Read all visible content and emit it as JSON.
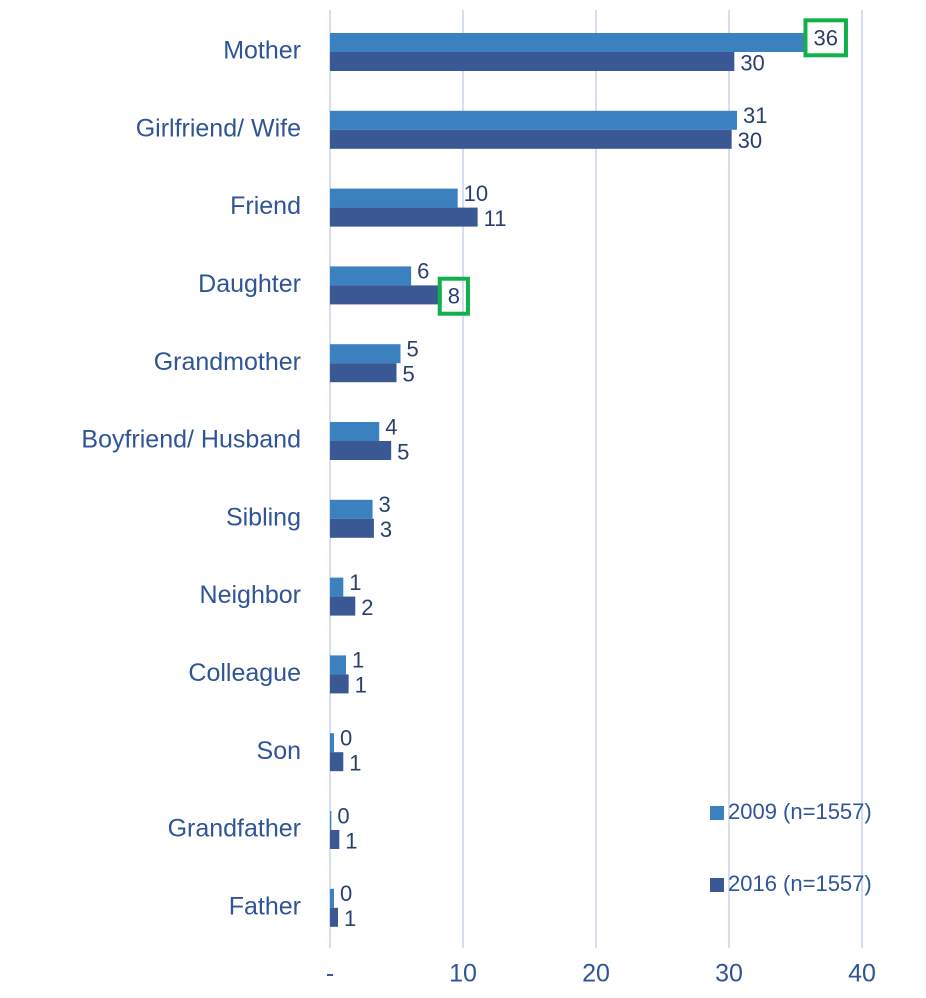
{
  "chart_data": {
    "type": "barh",
    "categories": [
      "Mother",
      "Girlfriend/ Wife",
      "Friend",
      "Daughter",
      "Grandmother",
      "Boyfriend/ Husband",
      "Sibling",
      "Neighbor",
      "Colleague",
      "Son",
      "Grandfather",
      "Father"
    ],
    "series": [
      {
        "name": "2009 (n=1557)",
        "color": "#3b80bf",
        "values": [
          35.9,
          30.6,
          9.6,
          6.1,
          5.3,
          3.7,
          3.2,
          1.0,
          1.2,
          0.3,
          0.1,
          0.3
        ],
        "value_labels": [
          "36",
          "31",
          "10",
          "6",
          "5",
          "4",
          "3",
          "1",
          "1",
          "0",
          "0",
          "0"
        ]
      },
      {
        "name": "2016 (n=1557)",
        "color": "#3a5893",
        "values": [
          30.4,
          30.2,
          11.1,
          8.4,
          5.0,
          4.6,
          3.3,
          1.9,
          1.4,
          1.0,
          0.7,
          0.6
        ],
        "value_labels": [
          "30",
          "30",
          "11",
          "8",
          "5",
          "5",
          "3",
          "2",
          "1",
          "1",
          "1",
          "1"
        ]
      }
    ],
    "xlim": [
      0,
      40
    ],
    "xticks": [
      {
        "value": 0,
        "label": "-"
      },
      10,
      20,
      30,
      40
    ],
    "grid": true,
    "legend": "lower right"
  }
}
